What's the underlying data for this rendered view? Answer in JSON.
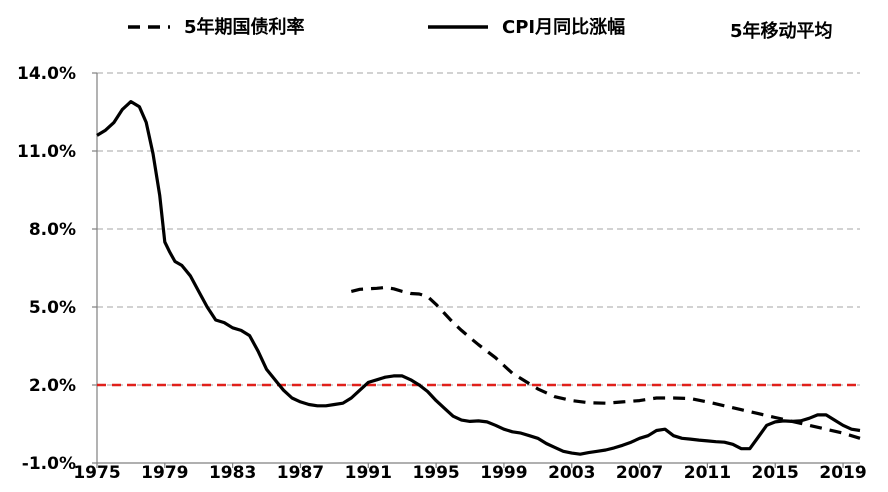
{
  "chart_data": {
    "type": "line",
    "title": "",
    "xlabel": "",
    "ylabel": "",
    "ylim": [
      -1.0,
      14.0
    ],
    "y_ticks": [
      "14.0%",
      "11.0%",
      "8.0%",
      "5.0%",
      "2.0%",
      "-1.0%"
    ],
    "y_tick_values": [
      14.0,
      11.0,
      8.0,
      5.0,
      2.0,
      -1.0
    ],
    "x_ticks": [
      "1975",
      "1979",
      "1983",
      "1987",
      "1991",
      "1995",
      "1999",
      "2003",
      "2007",
      "2011",
      "2015",
      "2019"
    ],
    "x_tick_values": [
      1975,
      1979,
      1983,
      1987,
      1991,
      1995,
      1999,
      2003,
      2007,
      2011,
      2015,
      2019
    ],
    "xlim": [
      1975,
      2020
    ],
    "grid": "horizontal dashed",
    "legend_position": "top",
    "legend_note": "5年移动平均",
    "reference_line": {
      "y": 2.0,
      "color": "#e0201b",
      "style": "dashed"
    },
    "series": [
      {
        "name": "5年期国债利率",
        "style": "dashed",
        "color": "#000000",
        "x": [
          1990,
          1990.5,
          1991,
          1991.5,
          1992,
          1992.5,
          1993,
          1993.5,
          1994,
          1994.5,
          1995,
          1995.5,
          1996,
          1996.5,
          1997,
          1997.5,
          1998,
          1998.5,
          1999,
          1999.5,
          2000,
          2000.5,
          2001,
          2001.5,
          2002,
          2003,
          2004,
          2005,
          2006,
          2007,
          2008,
          2009,
          2010,
          2011,
          2012,
          2013,
          2014,
          2015,
          2016,
          2017,
          2018,
          2019,
          2020
        ],
        "y": [
          5.6,
          5.68,
          5.7,
          5.72,
          5.75,
          5.7,
          5.6,
          5.52,
          5.5,
          5.4,
          5.1,
          4.75,
          4.4,
          4.1,
          3.82,
          3.55,
          3.3,
          3.05,
          2.75,
          2.45,
          2.25,
          2.05,
          1.85,
          1.7,
          1.55,
          1.4,
          1.32,
          1.3,
          1.35,
          1.4,
          1.5,
          1.5,
          1.48,
          1.35,
          1.2,
          1.05,
          0.9,
          0.75,
          0.6,
          0.45,
          0.3,
          0.15,
          -0.05
        ]
      },
      {
        "name": "CPI月同比涨幅",
        "style": "solid",
        "color": "#000000",
        "x": [
          1975,
          1975.5,
          1976,
          1976.5,
          1977,
          1977.5,
          1977.9,
          1978.3,
          1978.7,
          1979,
          1979.3,
          1979.6,
          1980,
          1980.5,
          1981,
          1981.5,
          1982,
          1982.5,
          1983,
          1983.5,
          1984,
          1984.5,
          1985,
          1985.5,
          1986,
          1986.5,
          1987,
          1987.5,
          1988,
          1988.5,
          1989,
          1989.5,
          1990,
          1990.5,
          1991,
          1991.5,
          1992,
          1992.5,
          1993,
          1993.5,
          1994,
          1994.5,
          1995,
          1995.5,
          1996,
          1996.5,
          1997,
          1997.5,
          1998,
          1998.5,
          1999,
          1999.5,
          2000,
          2000.5,
          2001,
          2001.5,
          2002,
          2002.5,
          2003,
          2003.5,
          2004,
          2004.5,
          2005,
          2005.5,
          2006,
          2006.5,
          2007,
          2007.5,
          2008,
          2008.5,
          2009,
          2009.5,
          2010,
          2010.5,
          2011,
          2011.5,
          2012,
          2012.5,
          2013,
          2013.5,
          2014,
          2014.5,
          2015,
          2015.5,
          2016,
          2016.5,
          2017,
          2017.5,
          2018,
          2018.5,
          2019,
          2019.5,
          2020
        ],
        "y": [
          11.6,
          11.8,
          12.1,
          12.6,
          12.9,
          12.7,
          12.1,
          10.9,
          9.3,
          7.5,
          7.1,
          6.75,
          6.6,
          6.2,
          5.6,
          5.0,
          4.5,
          4.4,
          4.2,
          4.1,
          3.9,
          3.3,
          2.6,
          2.2,
          1.8,
          1.5,
          1.35,
          1.25,
          1.2,
          1.2,
          1.25,
          1.3,
          1.5,
          1.8,
          2.1,
          2.2,
          2.3,
          2.35,
          2.35,
          2.2,
          2.0,
          1.75,
          1.4,
          1.1,
          0.8,
          0.65,
          0.6,
          0.62,
          0.58,
          0.45,
          0.3,
          0.2,
          0.15,
          0.05,
          -0.05,
          -0.25,
          -0.4,
          -0.55,
          -0.62,
          -0.66,
          -0.6,
          -0.55,
          -0.5,
          -0.42,
          -0.32,
          -0.2,
          -0.05,
          0.05,
          0.25,
          0.3,
          0.05,
          -0.05,
          -0.08,
          -0.12,
          -0.15,
          -0.18,
          -0.2,
          -0.28,
          -0.45,
          -0.45,
          0.0,
          0.45,
          0.58,
          0.62,
          0.6,
          0.62,
          0.72,
          0.85,
          0.85,
          0.65,
          0.45,
          0.3,
          0.25
        ]
      }
    ]
  }
}
